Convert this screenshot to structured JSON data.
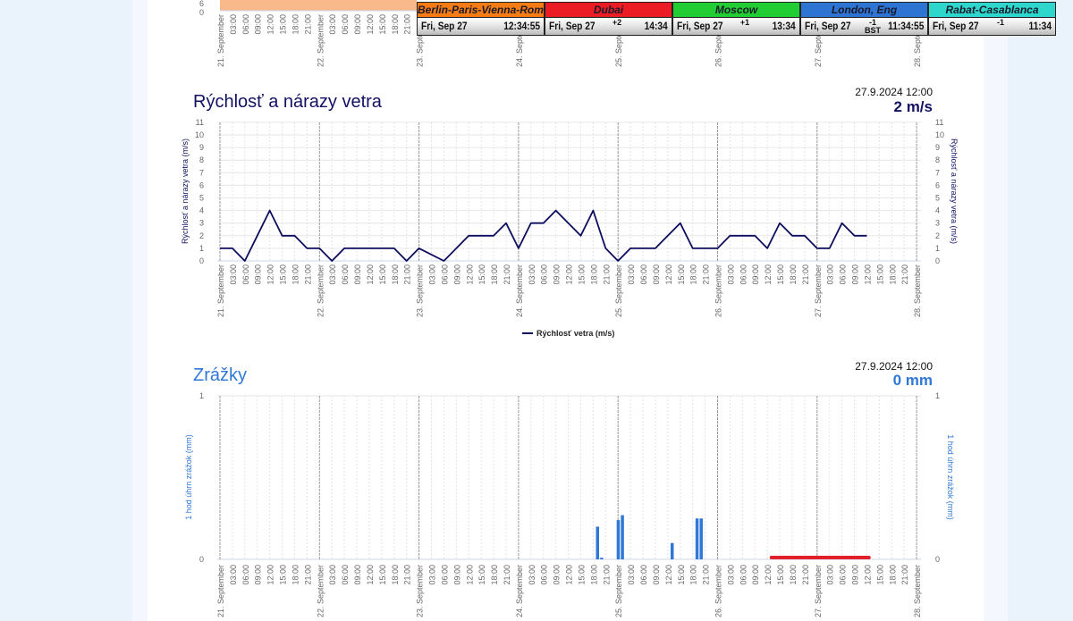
{
  "clocks": [
    {
      "city": "Berlin-Paris-Vienna-Roma",
      "date": "Fri, Sep 27",
      "offset": "",
      "time": "12:34:55",
      "color": "#f57c14"
    },
    {
      "city": "Dubai",
      "date": "Fri, Sep 27",
      "offset": "+2",
      "time": "14:34",
      "color": "#ec1c24"
    },
    {
      "city": "Moscow",
      "date": "Fri, Sep 27",
      "offset": "+1",
      "time": "13:34",
      "color": "#22cc33"
    },
    {
      "city": "London, Eng",
      "date": "Fri, Sep 27",
      "offset": "-1 BST",
      "time": "11:34:55",
      "color": "#2e74d2"
    },
    {
      "city": "Rabat-Casablanca",
      "date": "Fri, Sep 27",
      "offset": "-1",
      "time": "11:34",
      "color": "#2ed6cc"
    }
  ],
  "x_axis": {
    "days": [
      "21. September",
      "22. September",
      "23. September",
      "24. September",
      "25. September",
      "26. September",
      "27. September",
      "28. September"
    ],
    "hours": [
      "03:00",
      "06:00",
      "09:00",
      "12:00",
      "15:00",
      "18:00",
      "21:00"
    ]
  },
  "top_chart": {
    "y_ticks": [
      "6",
      "0"
    ],
    "fill_color": "#f9b98a"
  },
  "wind": {
    "title": "Rýchlosť a nárazy vetra",
    "timestamp": "27.9.2024 12:00",
    "current": "2 m/s",
    "ylabel": "Rýchlosť a nárazy vetra (m/s)",
    "legend": "Rýchlosť vetra (m/s)",
    "color": "#0d0d5e",
    "chart_data": {
      "type": "line",
      "ylim": [
        0,
        11
      ],
      "y_ticks": [
        0,
        1,
        2,
        3,
        4,
        5,
        6,
        7,
        8,
        9,
        10,
        11
      ],
      "x_start": "2024-09-21 00:00",
      "x_end": "2024-09-28 00:00",
      "step_hours": 3,
      "series": [
        {
          "name": "Rýchlosť vetra (m/s)",
          "values": [
            1,
            1,
            0,
            2,
            4,
            2,
            2,
            1,
            1,
            0,
            1,
            1,
            1,
            1,
            1,
            0,
            1,
            0.5,
            0,
            1,
            2,
            2,
            2,
            3,
            1,
            3,
            3,
            4,
            3,
            2,
            4,
            1,
            0,
            1,
            1,
            1,
            2,
            3,
            1,
            1,
            1,
            2,
            2,
            2,
            1,
            3,
            2,
            2,
            1,
            1,
            3,
            2,
            2
          ]
        }
      ]
    }
  },
  "precip": {
    "title": "Zrážky",
    "timestamp": "27.9.2024 12:00",
    "current": "0 mm",
    "ylabel": "1 hod úhrn zrážok (mm)",
    "color": "#2f78d6",
    "range_color": "#e3202a",
    "chart_data": {
      "type": "bar",
      "ylim": [
        0,
        1
      ],
      "y_ticks": [
        0,
        1
      ],
      "bars": [
        {
          "time": "2024-09-24 19:00",
          "value": 0.2
        },
        {
          "time": "2024-09-24 20:00",
          "value": 0.01
        },
        {
          "time": "2024-09-25 00:00",
          "value": 0.24
        },
        {
          "time": "2024-09-25 01:00",
          "value": 0.27
        },
        {
          "time": "2024-09-25 13:00",
          "value": 0.1
        },
        {
          "time": "2024-09-25 19:00",
          "value": 0.25
        },
        {
          "time": "2024-09-25 20:00",
          "value": 0.25
        }
      ],
      "range": {
        "from": "2024-09-26 13:00",
        "to": "2024-09-27 12:30"
      }
    }
  }
}
